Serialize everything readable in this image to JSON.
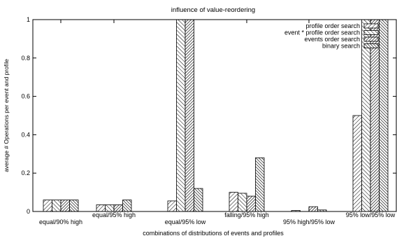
{
  "chart_data": {
    "type": "bar",
    "title": "influence of value-reordering",
    "xlabel": "combinations of distributions of events and profiles",
    "ylabel": "average # Operations per event and profile",
    "ylim": [
      0,
      1
    ],
    "yticks": [
      "0",
      "0.2",
      "0.4",
      "0.6",
      "0.8",
      "1"
    ],
    "ytick_values": [
      0,
      0.2,
      0.4,
      0.6,
      0.8,
      1
    ],
    "categories": [
      "equal/90% high",
      "equal/95% high",
      "equal/95% low",
      "falling/95% high",
      "95% high/95% low",
      "95% low/95% low"
    ],
    "legend_position": "top-right",
    "grid": false,
    "series": [
      {
        "name": "profile order search",
        "pattern": "hatch-45",
        "values": [
          0.06,
          0.035,
          0.055,
          0.1,
          0.005,
          0.5
        ]
      },
      {
        "name": "event * profile order search",
        "pattern": "hatch-135",
        "values": [
          0.06,
          0.035,
          1.0,
          0.095,
          0.0,
          1.0
        ]
      },
      {
        "name": "events order search",
        "pattern": "hatch-dense-45",
        "values": [
          0.06,
          0.035,
          1.0,
          0.08,
          0.025,
          1.0
        ]
      },
      {
        "name": "binary search",
        "pattern": "hatch-dense-135",
        "values": [
          0.06,
          0.06,
          0.12,
          0.28,
          0.008,
          1.0
        ]
      }
    ]
  }
}
